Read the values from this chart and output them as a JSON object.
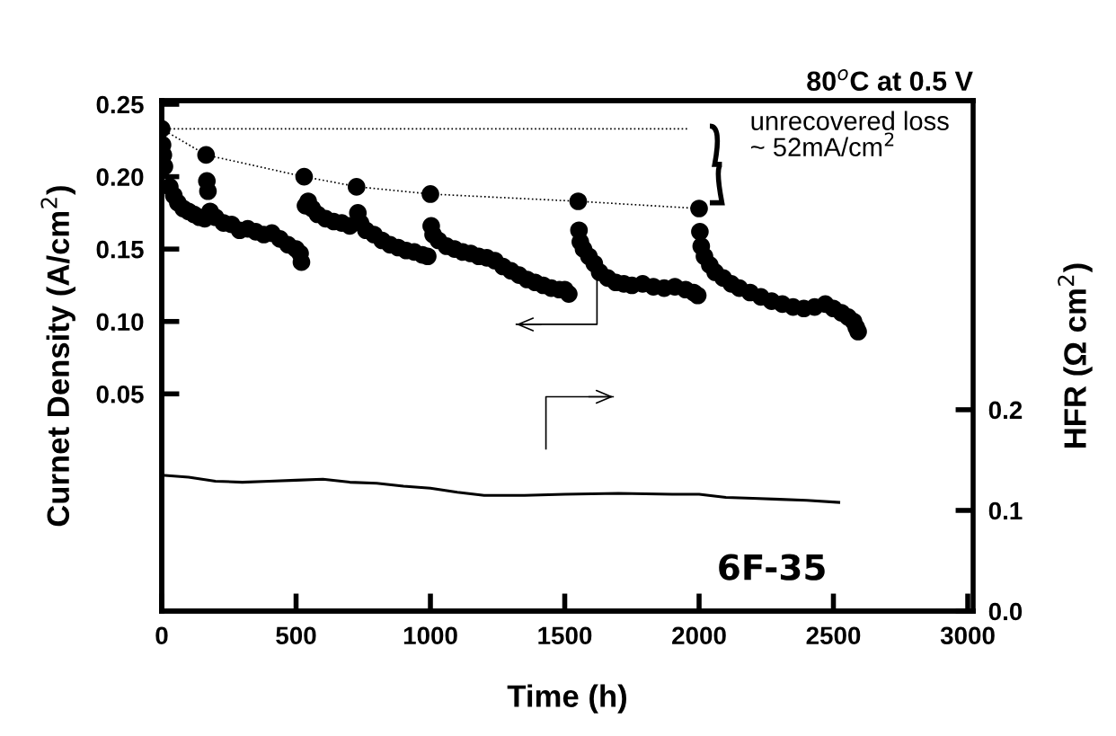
{
  "chart_data": {
    "type": "scatter",
    "title": "80$^{o}$C at 0.5 V",
    "xlabel": "Time (h)",
    "ylabel": "Curnet Density (A/cm$^{2}$)",
    "y2label": "HFR (Ω cm$^{2}$)",
    "annotations": [
      "unrecovered loss\n~ 52mA/cm$^{2}$",
      "6F-35"
    ],
    "xlim": [
      0,
      3020
    ],
    "xticks": [
      0,
      500,
      1000,
      1500,
      2000,
      2500,
      3000
    ],
    "ylim": [
      -0.1,
      0.2525
    ],
    "yticks": [
      {
        "value": 0.05,
        "label": "0.05"
      },
      {
        "value": 0.1,
        "label": "0.10"
      },
      {
        "value": 0.15,
        "label": "0.15"
      },
      {
        "value": 0.2,
        "label": "0.20"
      },
      {
        "value": 0.25,
        "label": "0.25"
      }
    ],
    "y2lim": [
      0,
      0.507
    ],
    "y2ticks": [
      {
        "value": 0,
        "label": "0.0"
      },
      0.1,
      0.2
    ],
    "grid": false,
    "series": [
      {
        "marker": "circle",
        "color": "#000000",
        "x": [
          0,
          3,
          6,
          10,
          30,
          45,
          60,
          80,
          100,
          120,
          140,
          160,
          165,
          168,
          172,
          180,
          200,
          230,
          260,
          290,
          320,
          350,
          380,
          410,
          440,
          470,
          500,
          515,
          520,
          530,
          535,
          545,
          560,
          580,
          610,
          640,
          670,
          700,
          725,
          730,
          740,
          760,
          790,
          820,
          850,
          880,
          910,
          940,
          970,
          990,
          1000,
          1003,
          1010,
          1030,
          1060,
          1090,
          1120,
          1150,
          1180,
          1210,
          1240,
          1270,
          1300,
          1330,
          1360,
          1390,
          1420,
          1450,
          1480,
          1500,
          1515,
          1550,
          1553,
          1558,
          1570,
          1590,
          1610,
          1630,
          1660,
          1690,
          1720,
          1750,
          1790,
          1830,
          1870,
          1910,
          1950,
          1980,
          1995,
          2000,
          2003,
          2008,
          2020,
          2040,
          2060,
          2090,
          2120,
          2150,
          2190,
          2230,
          2270,
          2310,
          2350,
          2390,
          2430,
          2470,
          2500,
          2530,
          2555,
          2575,
          2585,
          2592
        ],
        "values": [
          0.233,
          0.222,
          0.215,
          0.207,
          0.193,
          0.187,
          0.182,
          0.178,
          0.176,
          0.174,
          0.172,
          0.171,
          0.215,
          0.197,
          0.19,
          0.176,
          0.172,
          0.168,
          0.167,
          0.163,
          0.164,
          0.162,
          0.16,
          0.161,
          0.157,
          0.153,
          0.15,
          0.147,
          0.141,
          0.2,
          0.18,
          0.183,
          0.178,
          0.174,
          0.171,
          0.169,
          0.168,
          0.166,
          0.193,
          0.175,
          0.168,
          0.163,
          0.16,
          0.156,
          0.153,
          0.151,
          0.149,
          0.148,
          0.146,
          0.145,
          0.188,
          0.166,
          0.16,
          0.156,
          0.152,
          0.15,
          0.148,
          0.147,
          0.145,
          0.144,
          0.142,
          0.138,
          0.135,
          0.132,
          0.129,
          0.127,
          0.125,
          0.123,
          0.122,
          0.122,
          0.119,
          0.183,
          0.163,
          0.155,
          0.15,
          0.145,
          0.14,
          0.134,
          0.13,
          0.127,
          0.126,
          0.125,
          0.126,
          0.124,
          0.123,
          0.124,
          0.122,
          0.12,
          0.118,
          0.178,
          0.162,
          0.152,
          0.145,
          0.139,
          0.134,
          0.13,
          0.126,
          0.123,
          0.12,
          0.117,
          0.114,
          0.112,
          0.11,
          0.109,
          0.11,
          0.112,
          0.109,
          0.106,
          0.103,
          0.1,
          0.096,
          0.093
        ]
      },
      {
        "type": "line",
        "line_style": "dotted",
        "color": "#000000",
        "x": [
          0,
          1960
        ],
        "values": [
          0.233,
          0.233
        ]
      },
      {
        "type": "line",
        "line_style": "dotted",
        "color": "#000000",
        "x": [
          0,
          165,
          530,
          730,
          1000,
          1550,
          2000
        ],
        "values": [
          0.233,
          0.215,
          0.2,
          0.193,
          0.188,
          0.183,
          0.178
        ]
      },
      {
        "type": "line",
        "axis": "y2",
        "line_style": "solid",
        "color": "#000000",
        "x": [
          0,
          100,
          200,
          300,
          400,
          500,
          600,
          700,
          800,
          900,
          1000,
          1100,
          1200,
          1350,
          1500,
          1700,
          1900,
          2000,
          2100,
          2200,
          2300,
          2400,
          2520
        ],
        "values": [
          0.135,
          0.133,
          0.129,
          0.128,
          0.129,
          0.13,
          0.131,
          0.128,
          0.127,
          0.124,
          0.122,
          0.118,
          0.115,
          0.115,
          0.116,
          0.117,
          0.116,
          0.116,
          0.113,
          0.112,
          0.111,
          0.11,
          0.108
        ]
      }
    ]
  }
}
